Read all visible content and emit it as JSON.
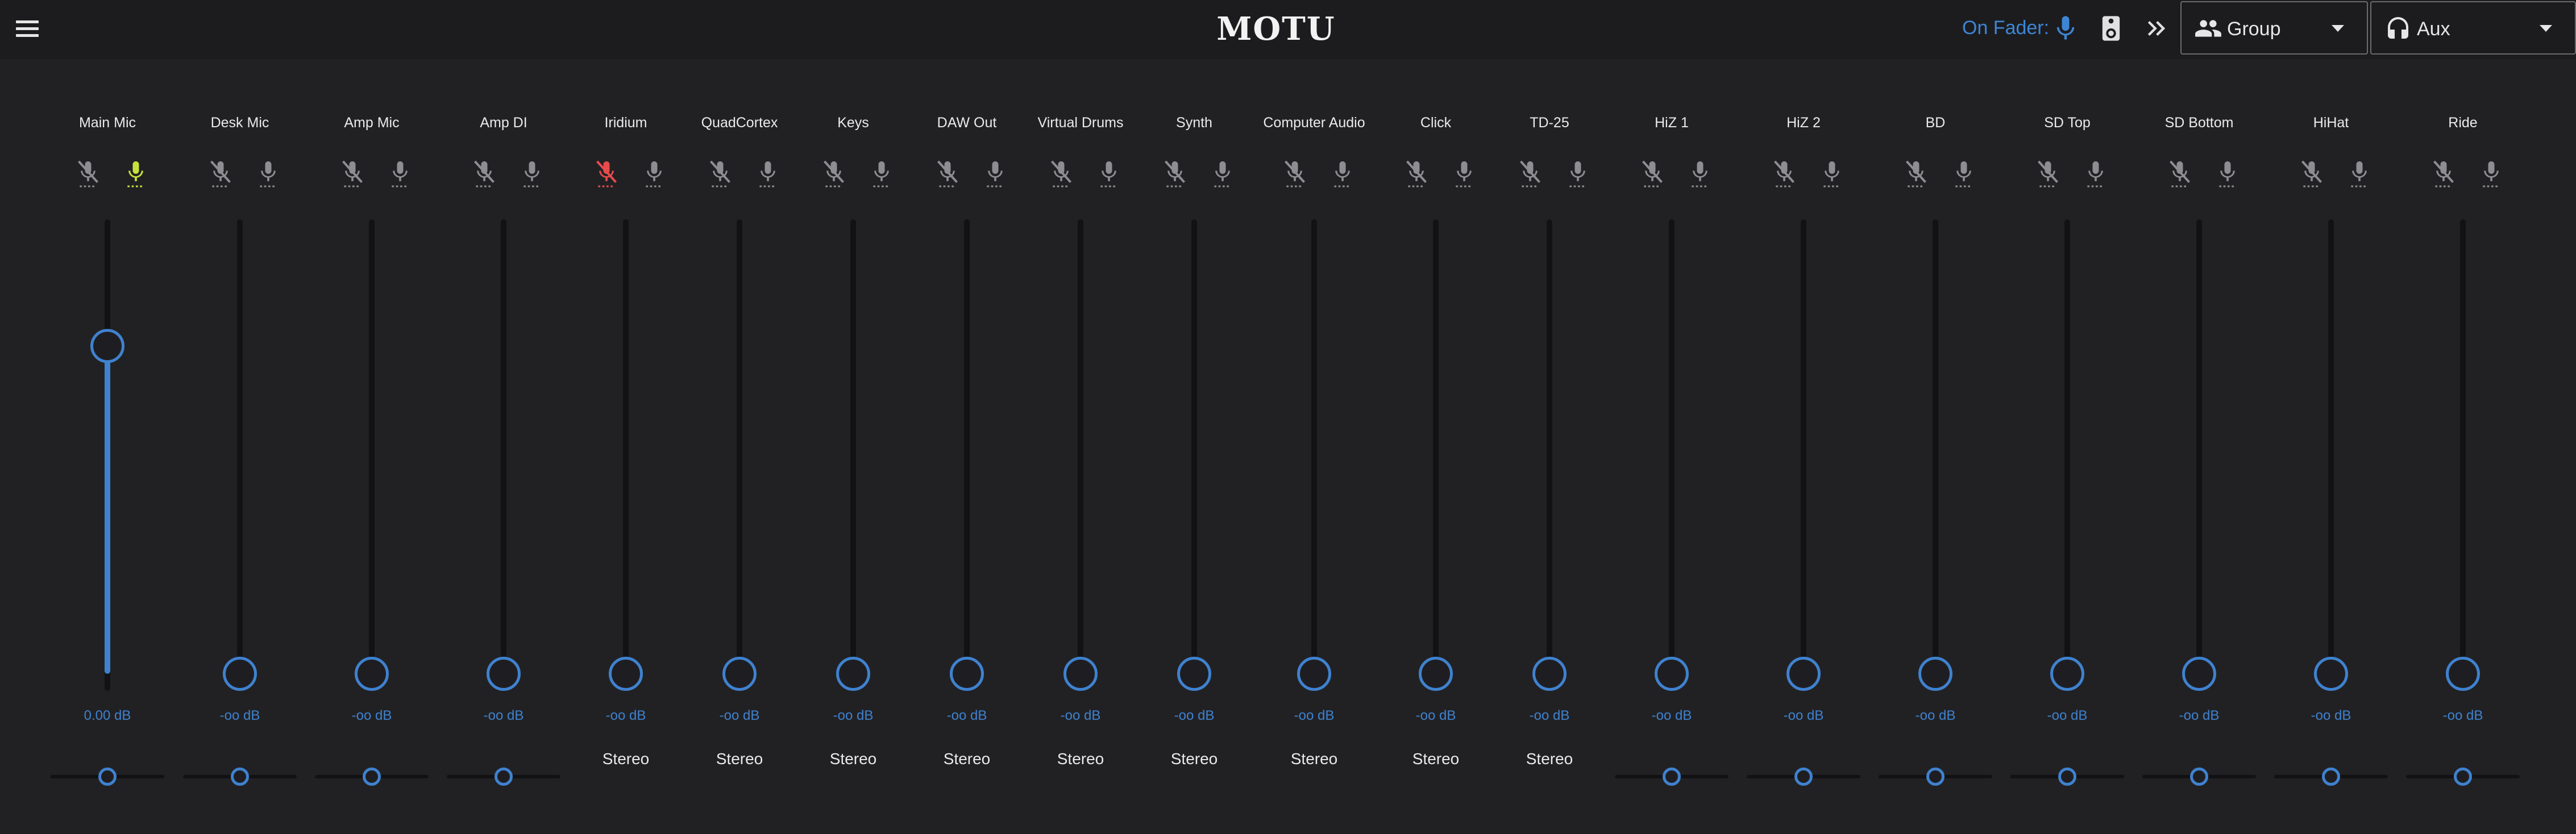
{
  "header": {
    "brand": "MOTU",
    "on_fader_label": "On Fader:",
    "icons": [
      "menu-icon",
      "microphone-icon",
      "speaker-icon",
      "double-chevron-right-icon"
    ],
    "group_dropdown": {
      "label": "Group",
      "icon": "people-icon"
    },
    "aux_dropdown": {
      "label": "Aux",
      "icon": "headphones-icon"
    }
  },
  "colors": {
    "accent": "#3f82cf",
    "mute_active": "#e84b4b",
    "solo_active": "#c6e23a",
    "icon_inactive": "#8e8e92",
    "background": "#212124"
  },
  "channels": [
    {
      "name": "Main Mic",
      "db": "0.00 dB",
      "fader": 0.75,
      "mute": false,
      "solo": true,
      "pan": "pan",
      "pan_value": 0.5
    },
    {
      "name": "Desk Mic",
      "db": "-oo dB",
      "fader": 0.0,
      "mute": false,
      "solo": false,
      "pan": "pan",
      "pan_value": 0.5
    },
    {
      "name": "Amp Mic",
      "db": "-oo dB",
      "fader": 0.0,
      "mute": false,
      "solo": false,
      "pan": "pan",
      "pan_value": 0.5
    },
    {
      "name": "Amp DI",
      "db": "-oo dB",
      "fader": 0.0,
      "mute": false,
      "solo": false,
      "pan": "pan",
      "pan_value": 0.5
    },
    {
      "name": "Iridium",
      "db": "-oo dB",
      "fader": 0.0,
      "mute": true,
      "solo": false,
      "pan": "Stereo"
    },
    {
      "name": "QuadCortex",
      "db": "-oo dB",
      "fader": 0.0,
      "mute": false,
      "solo": false,
      "pan": "Stereo"
    },
    {
      "name": "Keys",
      "db": "-oo dB",
      "fader": 0.0,
      "mute": false,
      "solo": false,
      "pan": "Stereo"
    },
    {
      "name": "DAW Out",
      "db": "-oo dB",
      "fader": 0.0,
      "mute": false,
      "solo": false,
      "pan": "Stereo"
    },
    {
      "name": "Virtual Drums",
      "db": "-oo dB",
      "fader": 0.0,
      "mute": false,
      "solo": false,
      "pan": "Stereo"
    },
    {
      "name": "Synth",
      "db": "-oo dB",
      "fader": 0.0,
      "mute": false,
      "solo": false,
      "pan": "Stereo"
    },
    {
      "name": "Computer Audio",
      "db": "-oo dB",
      "fader": 0.0,
      "mute": false,
      "solo": false,
      "pan": "Stereo"
    },
    {
      "name": "Click",
      "db": "-oo dB",
      "fader": 0.0,
      "mute": false,
      "solo": false,
      "pan": "Stereo"
    },
    {
      "name": "TD-25",
      "db": "-oo dB",
      "fader": 0.0,
      "mute": false,
      "solo": false,
      "pan": "Stereo"
    },
    {
      "name": "HiZ 1",
      "db": "-oo dB",
      "fader": 0.0,
      "mute": false,
      "solo": false,
      "pan": "pan",
      "pan_value": 0.5
    },
    {
      "name": "HiZ 2",
      "db": "-oo dB",
      "fader": 0.0,
      "mute": false,
      "solo": false,
      "pan": "pan",
      "pan_value": 0.5
    },
    {
      "name": "BD",
      "db": "-oo dB",
      "fader": 0.0,
      "mute": false,
      "solo": false,
      "pan": "pan",
      "pan_value": 0.5
    },
    {
      "name": "SD Top",
      "db": "-oo dB",
      "fader": 0.0,
      "mute": false,
      "solo": false,
      "pan": "pan",
      "pan_value": 0.5
    },
    {
      "name": "SD Bottom",
      "db": "-oo dB",
      "fader": 0.0,
      "mute": false,
      "solo": false,
      "pan": "pan",
      "pan_value": 0.5
    },
    {
      "name": "HiHat",
      "db": "-oo dB",
      "fader": 0.0,
      "mute": false,
      "solo": false,
      "pan": "pan",
      "pan_value": 0.5
    },
    {
      "name": "Ride",
      "db": "-oo dB",
      "fader": 0.0,
      "mute": false,
      "solo": false,
      "pan": "pan",
      "pan_value": 0.5
    }
  ]
}
